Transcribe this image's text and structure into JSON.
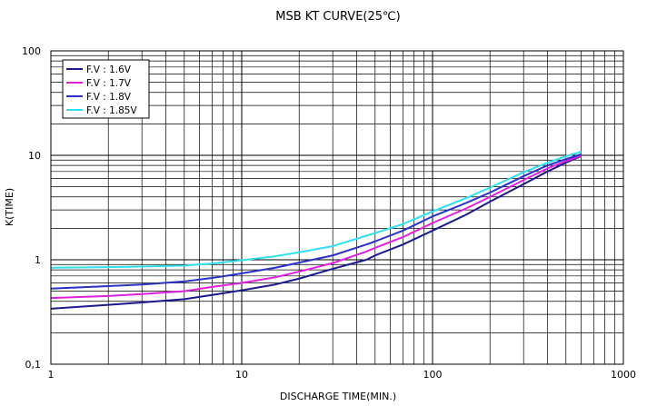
{
  "chart_data": {
    "type": "line",
    "title": "MSB KT CURVE(25℃)",
    "xlabel": "DISCHARGE TIME(MIN.)",
    "ylabel": "K(TIME)",
    "xscale": "log",
    "yscale": "log",
    "xlim": [
      1,
      1000
    ],
    "ylim": [
      0.1,
      100
    ],
    "x_tick_labels": [
      "1",
      "10",
      "100",
      "1000"
    ],
    "y_tick_labels": [
      "0,1",
      "1",
      "10",
      "100"
    ],
    "grid": true,
    "legend_position": "top-left",
    "series": [
      {
        "name": "F.V : 1.6V",
        "color": "#1a1a8c",
        "points": [
          [
            1,
            0.34
          ],
          [
            2,
            0.37
          ],
          [
            3,
            0.39
          ],
          [
            5,
            0.42
          ],
          [
            7,
            0.46
          ],
          [
            10,
            0.51
          ],
          [
            15,
            0.58
          ],
          [
            20,
            0.66
          ],
          [
            30,
            0.82
          ],
          [
            45,
            1.0
          ],
          [
            50,
            1.1
          ],
          [
            70,
            1.4
          ],
          [
            100,
            1.9
          ],
          [
            150,
            2.7
          ],
          [
            200,
            3.6
          ],
          [
            300,
            5.3
          ],
          [
            400,
            7.0
          ],
          [
            500,
            8.5
          ],
          [
            600,
            9.8
          ]
        ]
      },
      {
        "name": "F.V : 1.7V",
        "color": "#e020e0",
        "points": [
          [
            1,
            0.43
          ],
          [
            2,
            0.45
          ],
          [
            3,
            0.47
          ],
          [
            5,
            0.5
          ],
          [
            7,
            0.55
          ],
          [
            10,
            0.6
          ],
          [
            15,
            0.68
          ],
          [
            20,
            0.77
          ],
          [
            30,
            0.93
          ],
          [
            45,
            1.2
          ],
          [
            50,
            1.3
          ],
          [
            70,
            1.65
          ],
          [
            100,
            2.25
          ],
          [
            150,
            3.1
          ],
          [
            200,
            4.0
          ],
          [
            300,
            5.8
          ],
          [
            400,
            7.5
          ],
          [
            500,
            8.8
          ],
          [
            600,
            9.9
          ]
        ]
      },
      {
        "name": "F.V : 1.8V",
        "color": "#2a30c8",
        "points": [
          [
            1,
            0.53
          ],
          [
            2,
            0.56
          ],
          [
            3,
            0.58
          ],
          [
            5,
            0.62
          ],
          [
            7,
            0.67
          ],
          [
            10,
            0.74
          ],
          [
            15,
            0.84
          ],
          [
            20,
            0.94
          ],
          [
            30,
            1.1
          ],
          [
            45,
            1.4
          ],
          [
            50,
            1.5
          ],
          [
            70,
            1.9
          ],
          [
            100,
            2.6
          ],
          [
            150,
            3.5
          ],
          [
            200,
            4.4
          ],
          [
            300,
            6.3
          ],
          [
            400,
            8.0
          ],
          [
            500,
            9.2
          ],
          [
            600,
            10.2
          ]
        ]
      },
      {
        "name": "F.V : 1.85V",
        "color": "#30e0f0",
        "points": [
          [
            1,
            0.84
          ],
          [
            2,
            0.85
          ],
          [
            3,
            0.86
          ],
          [
            5,
            0.88
          ],
          [
            7,
            0.92
          ],
          [
            10,
            0.99
          ],
          [
            15,
            1.08
          ],
          [
            20,
            1.18
          ],
          [
            30,
            1.35
          ],
          [
            45,
            1.7
          ],
          [
            50,
            1.8
          ],
          [
            70,
            2.2
          ],
          [
            100,
            2.9
          ],
          [
            150,
            3.9
          ],
          [
            200,
            4.9
          ],
          [
            300,
            6.9
          ],
          [
            400,
            8.5
          ],
          [
            500,
            9.8
          ],
          [
            600,
            10.8
          ]
        ]
      }
    ]
  }
}
